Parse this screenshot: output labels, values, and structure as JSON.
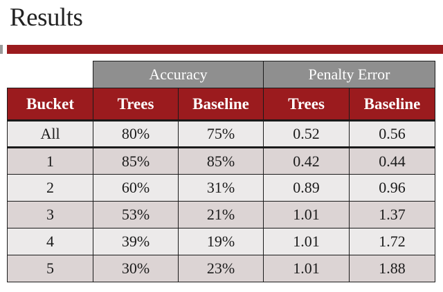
{
  "title": "Results",
  "table": {
    "groups": [
      {
        "label": "Accuracy"
      },
      {
        "label": "Penalty Error"
      }
    ],
    "headers": [
      "Bucket",
      "Trees",
      "Baseline",
      "Trees",
      "Baseline"
    ],
    "rows": [
      [
        "All",
        "80%",
        "75%",
        "0.52",
        "0.56"
      ],
      [
        "1",
        "85%",
        "85%",
        "0.42",
        "0.44"
      ],
      [
        "2",
        "60%",
        "31%",
        "0.89",
        "0.96"
      ],
      [
        "3",
        "53%",
        "21%",
        "1.01",
        "1.37"
      ],
      [
        "4",
        "39%",
        "19%",
        "1.01",
        "1.72"
      ],
      [
        "5",
        "30%",
        "23%",
        "1.01",
        "1.88"
      ]
    ]
  },
  "colors": {
    "accent_red": "#9b1b1e",
    "group_header_gray": "#8f8f8f",
    "row_light": "#eceaea",
    "row_dark": "#dcd4d4"
  }
}
